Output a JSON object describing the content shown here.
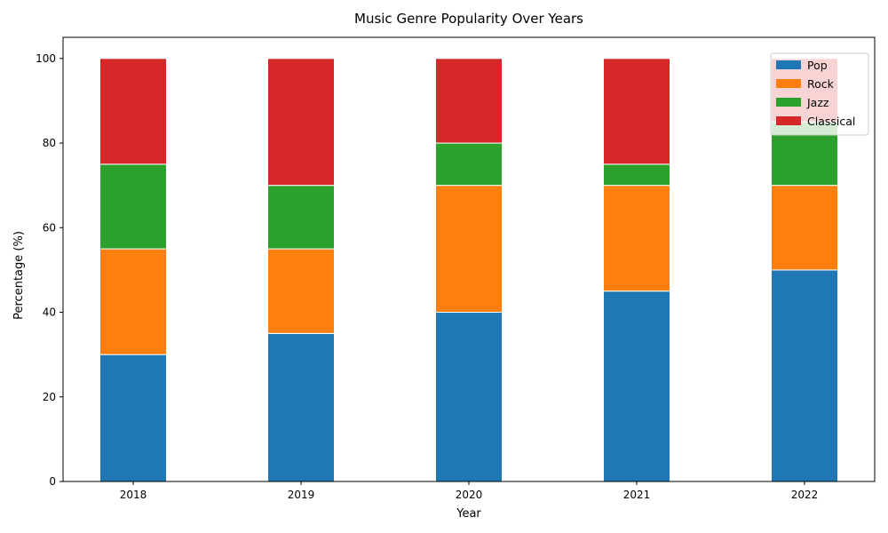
{
  "chart_data": {
    "type": "bar",
    "stacked": true,
    "title": "Music Genre Popularity Over Years",
    "xlabel": "Year",
    "ylabel": "Percentage (%)",
    "categories": [
      "2018",
      "2019",
      "2020",
      "2021",
      "2022"
    ],
    "ylim": [
      0,
      105
    ],
    "yticks": [
      0,
      20,
      40,
      60,
      80,
      100
    ],
    "grid": false,
    "legend_position": "top-right",
    "series": [
      {
        "name": "Pop",
        "color": "#1f77b4",
        "values": [
          30,
          35,
          40,
          45,
          50
        ]
      },
      {
        "name": "Rock",
        "color": "#ff7f0e",
        "values": [
          25,
          20,
          30,
          25,
          20
        ]
      },
      {
        "name": "Jazz",
        "color": "#2ca02c",
        "values": [
          20,
          15,
          10,
          5,
          15
        ]
      },
      {
        "name": "Classical",
        "color": "#d62728",
        "values": [
          25,
          30,
          20,
          25,
          15
        ]
      }
    ]
  }
}
